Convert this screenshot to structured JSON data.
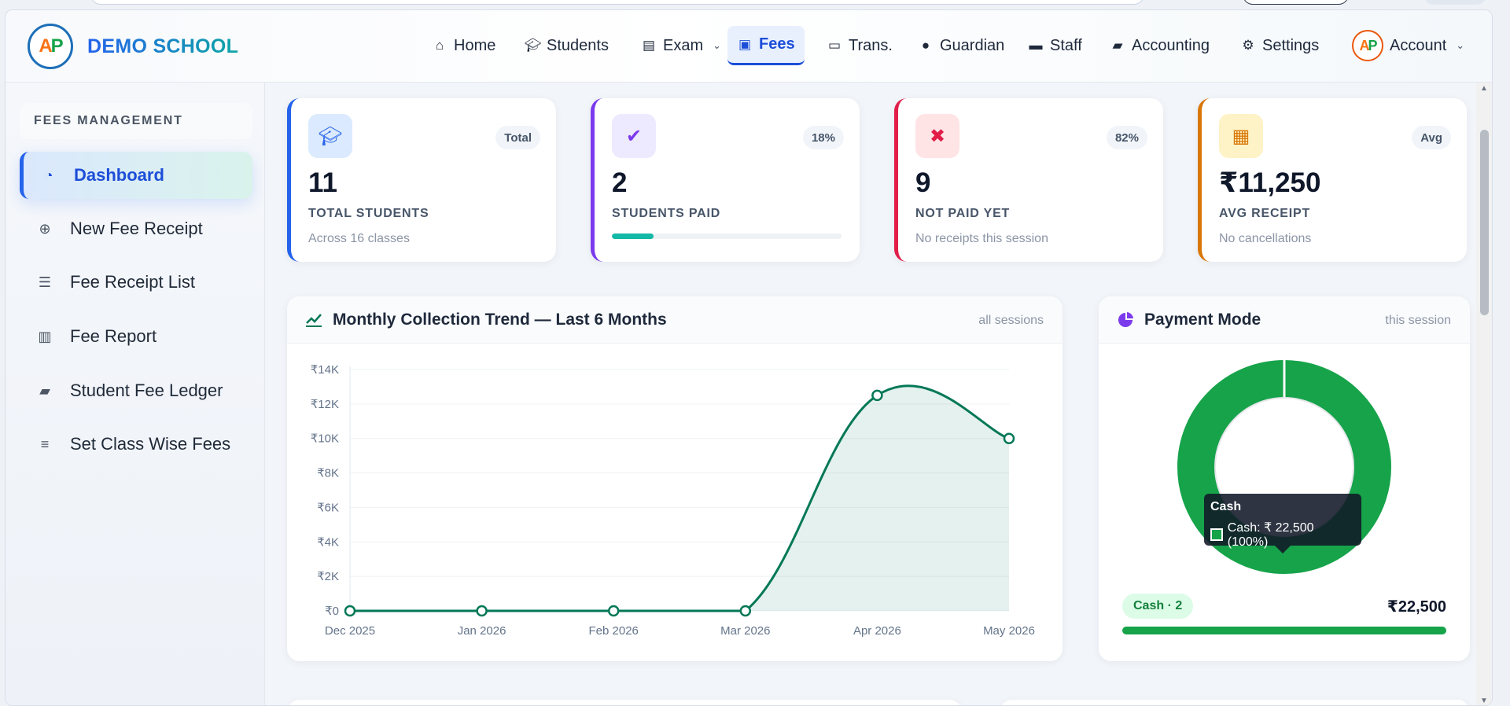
{
  "brand": {
    "name": "DEMO SCHOOL"
  },
  "nav": {
    "items": [
      {
        "label": "Home",
        "icon": "home-icon"
      },
      {
        "label": "Students",
        "icon": "graduation-cap-icon"
      },
      {
        "label": "Exam",
        "icon": "document-icon",
        "dropdown": true
      },
      {
        "label": "Fees",
        "icon": "money-icon",
        "active": true
      },
      {
        "label": "Trans.",
        "icon": "bus-icon"
      },
      {
        "label": "Guardian",
        "icon": "user-icon"
      },
      {
        "label": "Staff",
        "icon": "briefcase-icon"
      },
      {
        "label": "Accounting",
        "icon": "book-icon"
      },
      {
        "label": "Settings",
        "icon": "gear-icon"
      }
    ],
    "account_label": "Account"
  },
  "sidebar": {
    "section_title": "FEES MANAGEMENT",
    "items": [
      {
        "label": "Dashboard",
        "icon": "dashboard-icon",
        "active": true
      },
      {
        "label": "New Fee Receipt",
        "icon": "plus-circle-icon"
      },
      {
        "label": "Fee Receipt List",
        "icon": "list-icon"
      },
      {
        "label": "Fee Report",
        "icon": "bar-chart-icon"
      },
      {
        "label": "Student Fee Ledger",
        "icon": "book-icon"
      },
      {
        "label": "Set Class Wise Fees",
        "icon": "sliders-icon"
      }
    ]
  },
  "stats": [
    {
      "badge": "Total",
      "value": "11",
      "label": "TOTAL STUDENTS",
      "sub": "Across 16 classes",
      "accent": "#2563eb",
      "icon": "graduation-cap-icon"
    },
    {
      "badge": "18%",
      "value": "2",
      "label": "STUDENTS PAID",
      "progress": 0.18,
      "accent": "#7c3aed",
      "icon": "check-circle-icon"
    },
    {
      "badge": "82%",
      "value": "9",
      "label": "NOT PAID YET",
      "sub": "No receipts this session",
      "accent": "#e11d48",
      "icon": "user-x-icon"
    },
    {
      "badge": "Avg",
      "value": "₹11,250",
      "label": "AVG RECEIPT",
      "sub": "No cancellations",
      "accent": "#d97706",
      "icon": "calculator-icon"
    }
  ],
  "trend_panel": {
    "title": "Monthly Collection Trend — Last 6 Months",
    "meta": "all sessions"
  },
  "payment_panel": {
    "title": "Payment Mode",
    "meta": "this session",
    "tooltip_title": "Cash",
    "tooltip_text": "Cash: ₹ 22,500 (100%)",
    "legend_label": "Cash · 2",
    "legend_amount": "₹22,500"
  },
  "chart_data": [
    {
      "type": "area",
      "title": "Monthly Collection Trend — Last 6 Months",
      "categories": [
        "Dec 2025",
        "Jan 2026",
        "Feb 2026",
        "Mar 2026",
        "Apr 2026",
        "May 2026"
      ],
      "values": [
        0,
        0,
        0,
        0,
        12500,
        10000
      ],
      "ylim": [
        0,
        14000
      ],
      "yticks": [
        0,
        2000,
        4000,
        6000,
        8000,
        10000,
        12000,
        14000
      ],
      "ytick_labels": [
        "₹0",
        "₹2K",
        "₹4K",
        "₹6K",
        "₹8K",
        "₹10K",
        "₹12K",
        "₹14K"
      ],
      "color": "#047857",
      "grid": true
    },
    {
      "type": "pie",
      "title": "Payment Mode",
      "categories": [
        "Cash"
      ],
      "values": [
        22500
      ],
      "color": "#16a34a"
    }
  ]
}
